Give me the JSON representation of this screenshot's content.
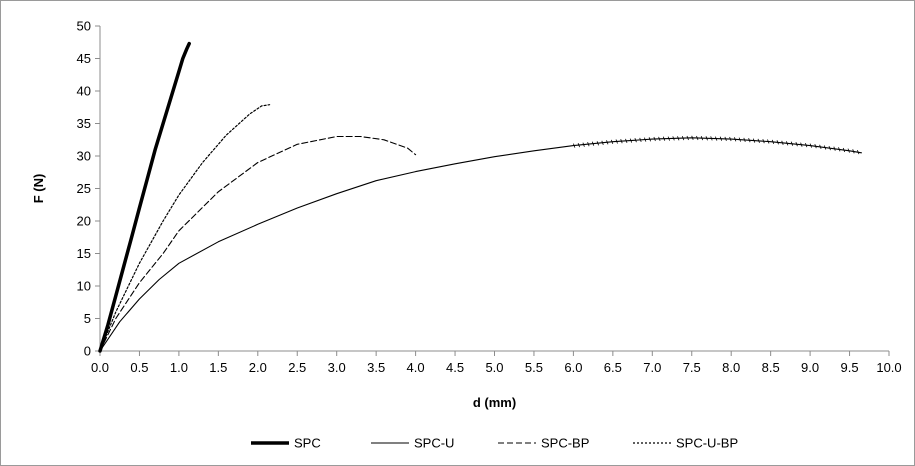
{
  "chart_data": {
    "type": "line",
    "title": "",
    "xlabel": "d (mm)",
    "ylabel": "F (N)",
    "xlim": [
      0,
      10
    ],
    "ylim": [
      0,
      50
    ],
    "xticks": [
      "0.0",
      "0.5",
      "1.0",
      "1.5",
      "2.0",
      "2.5",
      "3.0",
      "3.5",
      "4.0",
      "4.5",
      "5.0",
      "5.5",
      "6.0",
      "6.5",
      "7.0",
      "7.5",
      "8.0",
      "8.5",
      "9.0",
      "9.5",
      "10.0"
    ],
    "yticks": [
      "0",
      "5",
      "10",
      "15",
      "20",
      "25",
      "30",
      "35",
      "40",
      "45",
      "50"
    ],
    "grid": false,
    "legend_position": "bottom",
    "series": [
      {
        "name": "SPC",
        "style": "thick-solid",
        "x": [
          0,
          0.1,
          0.2,
          0.3,
          0.4,
          0.5,
          0.6,
          0.7,
          0.8,
          0.9,
          1.0,
          1.05,
          1.1,
          1.13
        ],
        "y": [
          0,
          4,
          8.5,
          13,
          17.5,
          22,
          26.5,
          31,
          35,
          39,
          43,
          45,
          46.5,
          47.3
        ]
      },
      {
        "name": "SPC-U",
        "style": "thin-solid",
        "x": [
          0,
          0.25,
          0.5,
          0.75,
          1.0,
          1.5,
          2.0,
          2.5,
          3.0,
          3.5,
          4.0,
          4.5,
          5.0,
          5.5,
          6.0,
          6.5,
          7.0,
          7.5,
          8.0,
          8.5,
          9.0,
          9.5,
          9.65
        ],
        "y": [
          0,
          4.5,
          8,
          11,
          13.5,
          16.8,
          19.5,
          22,
          24.2,
          26.2,
          27.6,
          28.8,
          29.9,
          30.8,
          31.6,
          32.2,
          32.6,
          32.8,
          32.6,
          32.2,
          31.6,
          30.8,
          30.5
        ]
      },
      {
        "name": "SPC-BP",
        "style": "dashed",
        "x": [
          0,
          0.2,
          0.5,
          0.8,
          1.0,
          1.5,
          2.0,
          2.5,
          3.0,
          3.3,
          3.6,
          3.9,
          4.0
        ],
        "y": [
          0,
          5,
          10.5,
          15,
          18.5,
          24.5,
          29,
          31.8,
          33,
          33,
          32.5,
          31.2,
          30.2
        ]
      },
      {
        "name": "SPC-U-BP",
        "style": "dotted",
        "x": [
          0,
          0.2,
          0.5,
          0.8,
          1.0,
          1.3,
          1.6,
          1.9,
          2.05,
          2.15
        ],
        "y": [
          0,
          6,
          13.5,
          20,
          24,
          29,
          33.2,
          36.5,
          37.7,
          37.9
        ]
      }
    ]
  }
}
